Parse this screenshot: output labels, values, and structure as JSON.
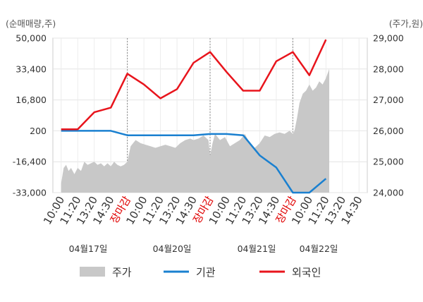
{
  "chart_data": {
    "type": "line",
    "left_axis_unit": "(순매매량,주)",
    "right_axis_unit": "(주가,원)",
    "left_ticks": [
      "50,000",
      "33,400",
      "16,800",
      "200",
      "-16,400",
      "-33,000"
    ],
    "left_range": [
      -33000,
      50000
    ],
    "right_ticks": [
      "29,000",
      "28,000",
      "27,000",
      "26,000",
      "25,000",
      "24,000"
    ],
    "right_range": [
      24000,
      29000
    ],
    "x_ticks": [
      "10:00",
      "11:20",
      "13:20",
      "14:30",
      "장마감",
      "10:00",
      "11:20",
      "13:20",
      "14:30",
      "장마감",
      "10:00",
      "11:20",
      "13:20",
      "14:30",
      "장마감",
      "10:00",
      "11:20",
      "13:20",
      "14:30"
    ],
    "x_close_label": "장마감",
    "dates": [
      "04월17일",
      "04월20일",
      "04월21일",
      "04월22일"
    ],
    "grid": true,
    "legend_position": "bottom",
    "series": [
      {
        "name": "기관",
        "axis": "left",
        "color": "#1a80d0",
        "x": [
          0,
          1,
          2,
          3,
          4,
          5,
          6,
          7,
          8,
          9,
          10,
          11,
          12,
          13,
          14,
          15,
          16
        ],
        "values": [
          200,
          200,
          200,
          200,
          -2200,
          -2200,
          -2200,
          -2200,
          -2200,
          -1500,
          -1500,
          -2200,
          -13000,
          -19500,
          -33000,
          -33000,
          -25500
        ]
      },
      {
        "name": "외국인",
        "axis": "right",
        "color": "#e8141c",
        "x": [
          0,
          1,
          2,
          3,
          4,
          5,
          6,
          7,
          8,
          9,
          10,
          11,
          12,
          13,
          14,
          15,
          16
        ],
        "values": [
          26050,
          26050,
          26600,
          26750,
          27850,
          27500,
          27050,
          27350,
          28200,
          28550,
          27900,
          27300,
          27300,
          28250,
          28550,
          27800,
          28950
        ]
      },
      {
        "name": "주가",
        "axis": "right",
        "type": "area",
        "color": "#c8c8c8",
        "x": [
          0,
          0.15,
          0.3,
          0.45,
          0.6,
          0.8,
          1.0,
          1.2,
          1.4,
          1.6,
          1.8,
          2.0,
          2.2,
          2.4,
          2.6,
          2.8,
          3.0,
          3.2,
          3.4,
          3.6,
          3.8,
          4.0,
          4.2,
          4.5,
          4.8,
          5.1,
          5.4,
          5.7,
          6.0,
          6.3,
          6.6,
          6.9,
          7.2,
          7.5,
          7.8,
          8.0,
          8.3,
          8.6,
          8.9,
          9.0,
          9.15,
          9.3,
          9.6,
          9.9,
          10.2,
          10.5,
          10.8,
          11.1,
          11.4,
          11.7,
          12.0,
          12.3,
          12.6,
          12.9,
          13.2,
          13.5,
          13.8,
          14.0,
          14.1,
          14.25,
          14.4,
          14.6,
          14.8,
          15.0,
          15.2,
          15.4,
          15.6,
          15.8,
          16.0,
          16.2
        ],
        "values": [
          24300,
          24800,
          24900,
          24700,
          24800,
          24600,
          24800,
          24700,
          25000,
          24900,
          24950,
          25000,
          24900,
          24950,
          24850,
          24950,
          24850,
          25000,
          24900,
          24850,
          24900,
          25000,
          25500,
          25700,
          25600,
          25550,
          25500,
          25450,
          25500,
          25550,
          25500,
          25450,
          25600,
          25700,
          25750,
          25700,
          25750,
          25850,
          25700,
          25200,
          25600,
          25900,
          25700,
          25800,
          25500,
          25600,
          25700,
          25900,
          25600,
          25450,
          25600,
          25850,
          25800,
          25900,
          25950,
          25900,
          26000,
          25900,
          26000,
          26400,
          26900,
          27200,
          27300,
          27500,
          27300,
          27400,
          27600,
          27500,
          27700,
          28000
        ]
      }
    ]
  }
}
